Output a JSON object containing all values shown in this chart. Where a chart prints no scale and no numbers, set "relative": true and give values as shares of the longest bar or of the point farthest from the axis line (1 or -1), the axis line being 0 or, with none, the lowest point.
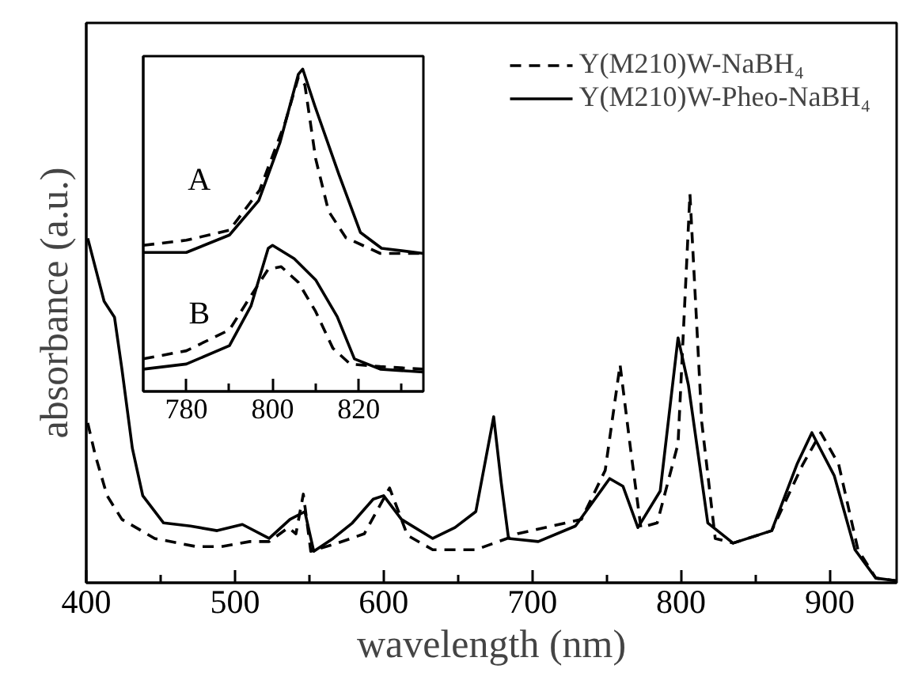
{
  "chart_data": [
    {
      "type": "line",
      "xlabel": "wavelength (nm)",
      "ylabel": "absorbance (a.u.)",
      "relative": true,
      "tick_labels": "x",
      "legend": "top right",
      "xlim": [
        400,
        945
      ],
      "xticks": [
        400,
        {
          "value": 450,
          "label": null
        },
        500,
        {
          "value": 550,
          "label": null
        },
        600,
        {
          "value": 650,
          "label": null
        },
        700,
        {
          "value": 750,
          "label": null
        },
        800,
        {
          "value": 850,
          "label": null
        },
        900
      ],
      "series": [
        {
          "name": "Y(M210)W-NaBH₄",
          "color": "#000000",
          "line_style": "dashed",
          "x": [
            401,
            406,
            414,
            424,
            446,
            474,
            491,
            510,
            523,
            536,
            541,
            546,
            551,
            569,
            587,
            604,
            616,
            633,
            662,
            683,
            690,
            733,
            749,
            759,
            766,
            773,
            784,
            798,
            806,
            814,
            823,
            835,
            861,
            882,
            894,
            906,
            919,
            931,
            945
          ],
          "values": [
            0.411,
            0.329,
            0.224,
            0.163,
            0.114,
            0.093,
            0.093,
            0.106,
            0.106,
            0.142,
            0.126,
            0.228,
            0.081,
            0.102,
            0.126,
            0.244,
            0.122,
            0.085,
            0.085,
            0.114,
            0.126,
            0.163,
            0.289,
            0.561,
            0.346,
            0.142,
            0.154,
            0.358,
            1.0,
            0.411,
            0.114,
            0.102,
            0.134,
            0.305,
            0.386,
            0.305,
            0.085,
            0.012,
            0.005
          ]
        },
        {
          "name": "Y(M210)W-Pheo-NaBH₄",
          "color": "#000000",
          "line_style": "solid",
          "x": [
            401,
            412,
            419,
            424,
            431,
            438,
            452,
            470,
            488,
            505,
            523,
            537,
            547,
            553,
            566,
            579,
            593,
            600,
            612,
            633,
            648,
            662,
            674,
            679,
            684,
            704,
            729,
            752,
            761,
            771,
            786,
            798,
            805,
            818,
            835,
            861,
            878,
            888,
            903,
            917,
            931,
            945
          ],
          "values": [
            0.886,
            0.724,
            0.683,
            0.549,
            0.346,
            0.224,
            0.154,
            0.146,
            0.134,
            0.15,
            0.114,
            0.163,
            0.183,
            0.081,
            0.114,
            0.154,
            0.215,
            0.224,
            0.163,
            0.114,
            0.142,
            0.183,
            0.427,
            0.26,
            0.114,
            0.106,
            0.146,
            0.268,
            0.248,
            0.142,
            0.236,
            0.63,
            0.508,
            0.154,
            0.102,
            0.134,
            0.305,
            0.386,
            0.276,
            0.085,
            0.012,
            0.005
          ]
        }
      ]
    },
    {
      "type": "line",
      "relative": true,
      "tick_labels": "x",
      "xlim": [
        770,
        835
      ],
      "xticks": [
        780,
        {
          "value": 790,
          "label": null
        },
        800,
        {
          "value": 810,
          "label": null
        },
        820,
        {
          "value": 830,
          "label": null
        }
      ],
      "annotations": [
        "A",
        "B"
      ],
      "series": [
        {
          "color": "#000000",
          "line_style": "solid",
          "x": [
            770,
            780,
            790,
            796.8,
            801.7,
            806,
            807,
            809.8,
            815.4,
            820.4,
            825.3,
            835
          ],
          "values": [
            0.431,
            0.431,
            0.485,
            0.592,
            0.771,
            0.984,
            1.0,
            0.886,
            0.673,
            0.493,
            0.444,
            0.428
          ]
        },
        {
          "color": "#000000",
          "line_style": "dashed",
          "x": [
            770,
            780,
            790,
            797,
            803,
            806,
            807.5,
            810,
            813,
            817,
            825,
            835
          ],
          "values": [
            0.453,
            0.469,
            0.5,
            0.624,
            0.837,
            0.975,
            0.951,
            0.722,
            0.559,
            0.477,
            0.428,
            0.428
          ]
        },
        {
          "color": "#000000",
          "line_style": "solid",
          "x": [
            770,
            780,
            790,
            795,
            799,
            800,
            805,
            810,
            815,
            819,
            825,
            835
          ],
          "values": [
            0.069,
            0.085,
            0.142,
            0.265,
            0.444,
            0.453,
            0.412,
            0.346,
            0.232,
            0.101,
            0.069,
            0.06
          ]
        },
        {
          "color": "#000000",
          "line_style": "dashed",
          "x": [
            770,
            780,
            790,
            795,
            799,
            802,
            806,
            810,
            814,
            818,
            825,
            835
          ],
          "values": [
            0.101,
            0.126,
            0.191,
            0.297,
            0.379,
            0.387,
            0.338,
            0.248,
            0.134,
            0.085,
            0.077,
            0.069
          ]
        }
      ]
    }
  ]
}
